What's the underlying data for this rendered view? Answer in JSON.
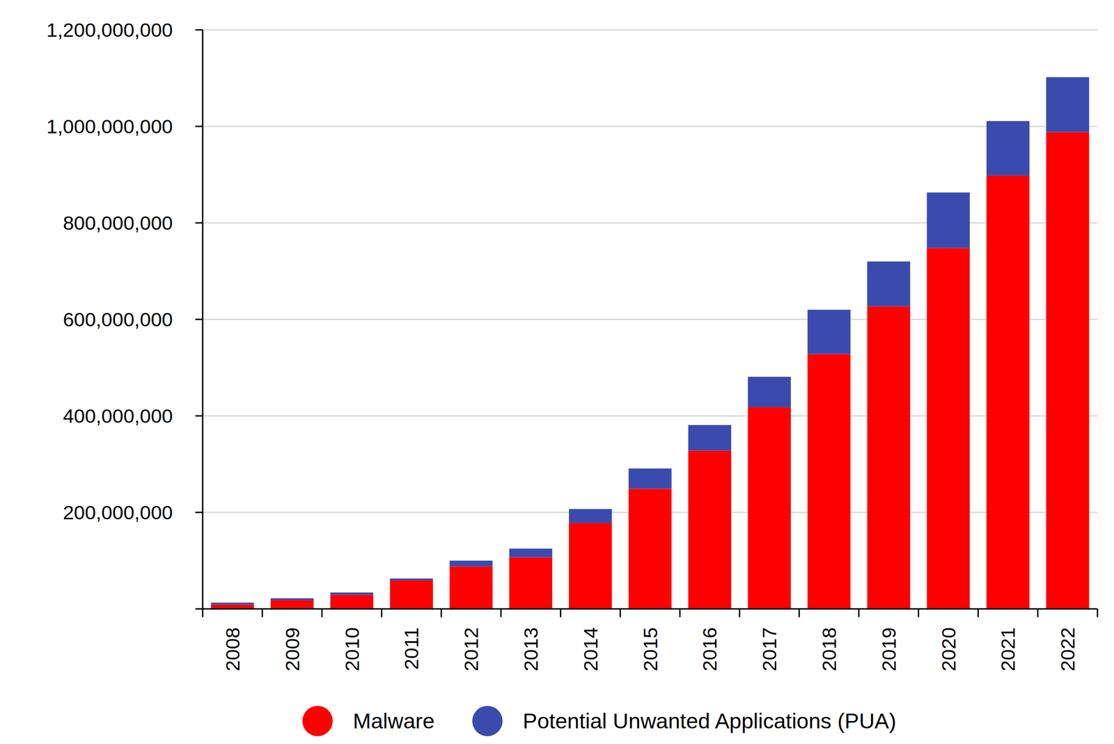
{
  "chart_data": {
    "type": "bar",
    "stacked": true,
    "grid": true,
    "legend": "bottom",
    "categories": [
      "2008",
      "2009",
      "2010",
      "2011",
      "2012",
      "2013",
      "2014",
      "2015",
      "2016",
      "2017",
      "2018",
      "2019",
      "2020",
      "2021",
      "2022"
    ],
    "series": [
      {
        "name": "Malware",
        "color": "#ff0000",
        "values": [
          9000000,
          18000000,
          29000000,
          59000000,
          88000000,
          107000000,
          178000000,
          249000000,
          328000000,
          418000000,
          528000000,
          627000000,
          748000000,
          898000000,
          988000000
        ]
      },
      {
        "name": "Potential Unwanted Applications (PUA)",
        "color": "#3b4bad",
        "values": [
          4000000,
          4000000,
          5000000,
          4000000,
          12000000,
          18000000,
          29000000,
          42000000,
          53000000,
          63000000,
          92000000,
          93000000,
          115000000,
          113000000,
          114000000
        ]
      }
    ],
    "ylim": [
      0,
      1200000000
    ],
    "yticks": [
      {
        "value": 200000000,
        "label": "200,000,000"
      },
      {
        "value": 400000000,
        "label": "400,000,000"
      },
      {
        "value": 600000000,
        "label": "600,000,000"
      },
      {
        "value": 800000000,
        "label": "800,000,000"
      },
      {
        "value": 1000000000,
        "label": "1,000,000,000"
      },
      {
        "value": 1200000000,
        "label": "1,200,000,000"
      }
    ]
  }
}
